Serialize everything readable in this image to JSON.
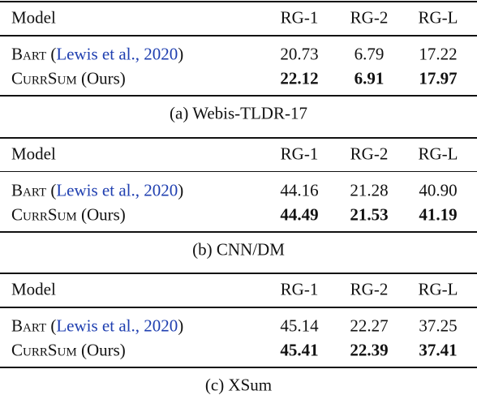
{
  "tables": [
    {
      "header": [
        "Model",
        "RG-1",
        "RG-2",
        "RG-L"
      ],
      "rows": [
        {
          "name": "Bart",
          "citation": {
            "open": "(",
            "text": "Lewis et al., 2020",
            "close": ")"
          },
          "cells": [
            "20.73",
            "6.79",
            "17.22"
          ],
          "bold": false
        },
        {
          "name": "CurrSum",
          "note": "(Ours)",
          "cells": [
            "22.12",
            "6.91",
            "17.97"
          ],
          "bold": true
        }
      ],
      "caption": "(a) Webis-TLDR-17"
    },
    {
      "header": [
        "Model",
        "RG-1",
        "RG-2",
        "RG-L"
      ],
      "rows": [
        {
          "name": "Bart",
          "citation": {
            "open": "(",
            "text": "Lewis et al., 2020",
            "close": ")"
          },
          "cells": [
            "44.16",
            "21.28",
            "40.90"
          ],
          "bold": false
        },
        {
          "name": "CurrSum",
          "note": "(Ours)",
          "cells": [
            "44.49",
            "21.53",
            "41.19"
          ],
          "bold": true
        }
      ],
      "caption": "(b) CNN/DM"
    },
    {
      "header": [
        "Model",
        "RG-1",
        "RG-2",
        "RG-L"
      ],
      "rows": [
        {
          "name": "Bart",
          "citation": {
            "open": "(",
            "text": "Lewis et al., 2020",
            "close": ")"
          },
          "cells": [
            "45.14",
            "22.27",
            "37.25"
          ],
          "bold": false
        },
        {
          "name": "CurrSum",
          "note": "(Ours)",
          "cells": [
            "45.41",
            "22.39",
            "37.41"
          ],
          "bold": true
        }
      ],
      "caption": "(c) XSum"
    }
  ]
}
